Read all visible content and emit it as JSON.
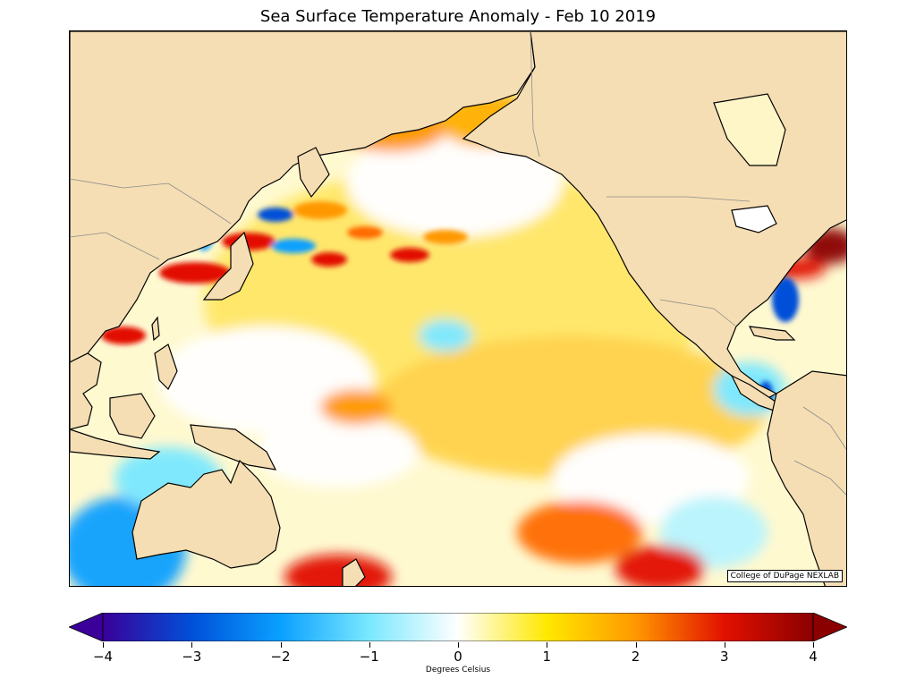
{
  "title": "Sea Surface Temperature Anomaly - Feb 10 2019",
  "credit": "College of DuPage NEXLAB",
  "colorbar": {
    "label": "Degrees Celsius",
    "min": -4,
    "max": 4,
    "ticks": [
      "−4",
      "−3",
      "−2",
      "−1",
      "0",
      "1",
      "2",
      "3",
      "4"
    ],
    "colors": [
      "#3a0099",
      "#0050d8",
      "#0aa0ff",
      "#7ae8ff",
      "#ffffff",
      "#ffe800",
      "#ff9800",
      "#e21000",
      "#8a0000"
    ]
  },
  "map": {
    "region": "Pacific Ocean",
    "land_color": "#f5deb3",
    "coast_color": "#000000",
    "border_color": "#8c8c8c"
  }
}
